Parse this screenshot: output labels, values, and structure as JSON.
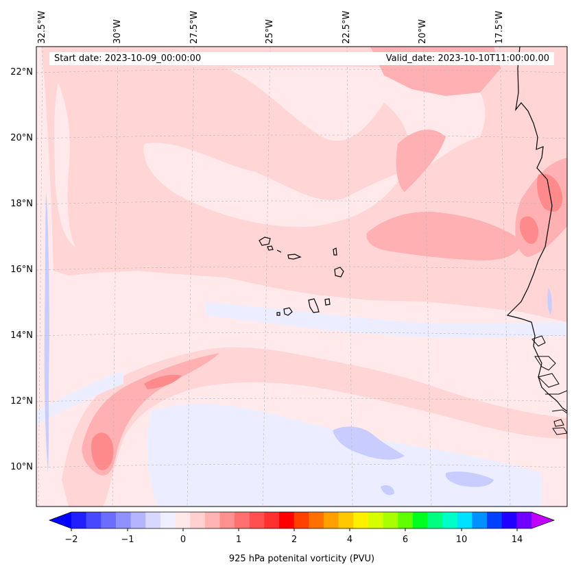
{
  "header": {
    "start_date": "Start date: 2023-10-09_00:00:00",
    "valid_date": "Valid_date: 2023-10-10T11:00:00.00"
  },
  "axes": {
    "lon_labels": [
      "32.5°W",
      "30°W",
      "27.5°W",
      "25°W",
      "22.5°W",
      "20°W",
      "17.5°W"
    ],
    "lat_labels": [
      "22°N",
      "20°N",
      "18°N",
      "16°N",
      "14°N",
      "12°N",
      "10°N"
    ]
  },
  "colorbar": {
    "title": "925 hPa potenital vorticity (PVU)",
    "ticks": [
      "−2",
      "−1",
      "0",
      "1",
      "2",
      "4",
      "6",
      "10",
      "14"
    ],
    "colors": [
      "#0000ff",
      "#2020ff",
      "#4848ff",
      "#6c6cff",
      "#9090ff",
      "#b4b4ff",
      "#d8d8ff",
      "#eeeeff",
      "#ffe8e8",
      "#ffd0d0",
      "#ffb4b4",
      "#ff9090",
      "#ff7070",
      "#ff5050",
      "#ff3030",
      "#ff0000",
      "#ff4000",
      "#ff7000",
      "#ffa000",
      "#ffc800",
      "#fff000",
      "#d8ff00",
      "#a8ff00",
      "#60ff00",
      "#00ff20",
      "#00ff80",
      "#00ffc8",
      "#00e0ff",
      "#0090ff",
      "#0040ff",
      "#2000ff",
      "#7000ff",
      "#c000ff"
    ]
  },
  "fill_colors": {
    "background": "#ffe9ea",
    "light_pink": "#ffd5d6",
    "pink": "#ffb0b2",
    "red": "#ff8a8c",
    "light_blue": "#eceeff",
    "blue": "#c9ccff",
    "coast": "#000000"
  }
}
